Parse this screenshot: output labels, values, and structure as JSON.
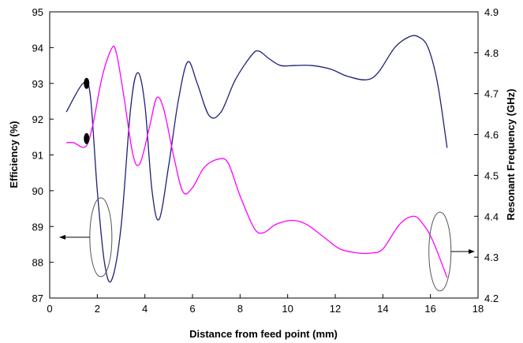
{
  "chart_data": {
    "type": "line",
    "title": "",
    "xlabel": "Distance from feed point (mm)",
    "ylabel_left": "Efficiency (%)",
    "ylabel_right": "Resonant Frequency (GHz)",
    "xlim": [
      0,
      18
    ],
    "ylim_left": [
      87,
      95
    ],
    "ylim_right": [
      4.2,
      4.9
    ],
    "x_ticks": [
      "0",
      "2",
      "4",
      "6",
      "8",
      "10",
      "12",
      "14",
      "16",
      "18"
    ],
    "y_ticks_left": [
      "87",
      "88",
      "89",
      "90",
      "91",
      "92",
      "93",
      "94",
      "95"
    ],
    "y_ticks_right": [
      "4.2",
      "4.3",
      "4.4",
      "4.5",
      "4.6",
      "4.7",
      "4.8",
      "4.9"
    ],
    "grid": false,
    "legend": "none",
    "series": [
      {
        "axis": "left",
        "color": "#1f1f7a",
        "x": [
          0.7,
          1.4,
          1.7,
          2.0,
          2.3,
          2.6,
          3.0,
          3.4,
          3.7,
          4.0,
          4.3,
          4.6,
          5.0,
          5.4,
          5.8,
          6.2,
          6.7,
          7.2,
          7.8,
          8.5,
          8.8,
          9.2,
          9.7,
          10.3,
          11.0,
          11.8,
          12.5,
          13.3,
          13.8,
          14.5,
          15.1,
          15.5,
          15.9,
          16.3,
          16.7
        ],
        "y": [
          92.2,
          93.0,
          92.7,
          90.0,
          88.0,
          87.5,
          89.0,
          92.3,
          93.3,
          92.4,
          90.0,
          89.2,
          90.7,
          92.5,
          93.6,
          93.0,
          92.1,
          92.2,
          93.1,
          93.8,
          93.9,
          93.7,
          93.5,
          93.5,
          93.5,
          93.4,
          93.2,
          93.1,
          93.3,
          94.0,
          94.3,
          94.3,
          94.0,
          93.0,
          91.2
        ]
      },
      {
        "axis": "right",
        "color": "#ff00ff",
        "x": [
          0.7,
          1.0,
          1.5,
          1.8,
          2.2,
          2.6,
          2.8,
          3.1,
          3.5,
          3.8,
          4.2,
          4.5,
          4.8,
          5.2,
          5.6,
          6.0,
          6.5,
          7.1,
          7.5,
          8.0,
          8.6,
          9.0,
          9.5,
          10.2,
          10.8,
          11.5,
          12.2,
          13.0,
          13.5,
          14.0,
          14.7,
          15.3,
          15.7,
          16.1,
          16.7
        ],
        "y": [
          4.58,
          4.58,
          4.57,
          4.62,
          4.74,
          4.81,
          4.8,
          4.7,
          4.55,
          4.53,
          4.62,
          4.69,
          4.66,
          4.55,
          4.46,
          4.47,
          4.52,
          4.54,
          4.53,
          4.45,
          4.37,
          4.36,
          4.38,
          4.39,
          4.38,
          4.35,
          4.32,
          4.31,
          4.31,
          4.32,
          4.38,
          4.4,
          4.38,
          4.34,
          4.25
        ]
      }
    ],
    "markers": [
      {
        "x": 1.55,
        "y": 93.0,
        "axis": "left"
      },
      {
        "x": 1.55,
        "y": 4.59,
        "axis": "right"
      }
    ],
    "annotations": [
      {
        "type": "ellipse-arrow",
        "target_axis": "left",
        "cx": 2.15,
        "cy": 88.7,
        "arrow_to": "left"
      },
      {
        "type": "ellipse-arrow",
        "target_axis": "right",
        "cx": 16.4,
        "cy": 88.3,
        "arrow_to": "right"
      }
    ]
  }
}
